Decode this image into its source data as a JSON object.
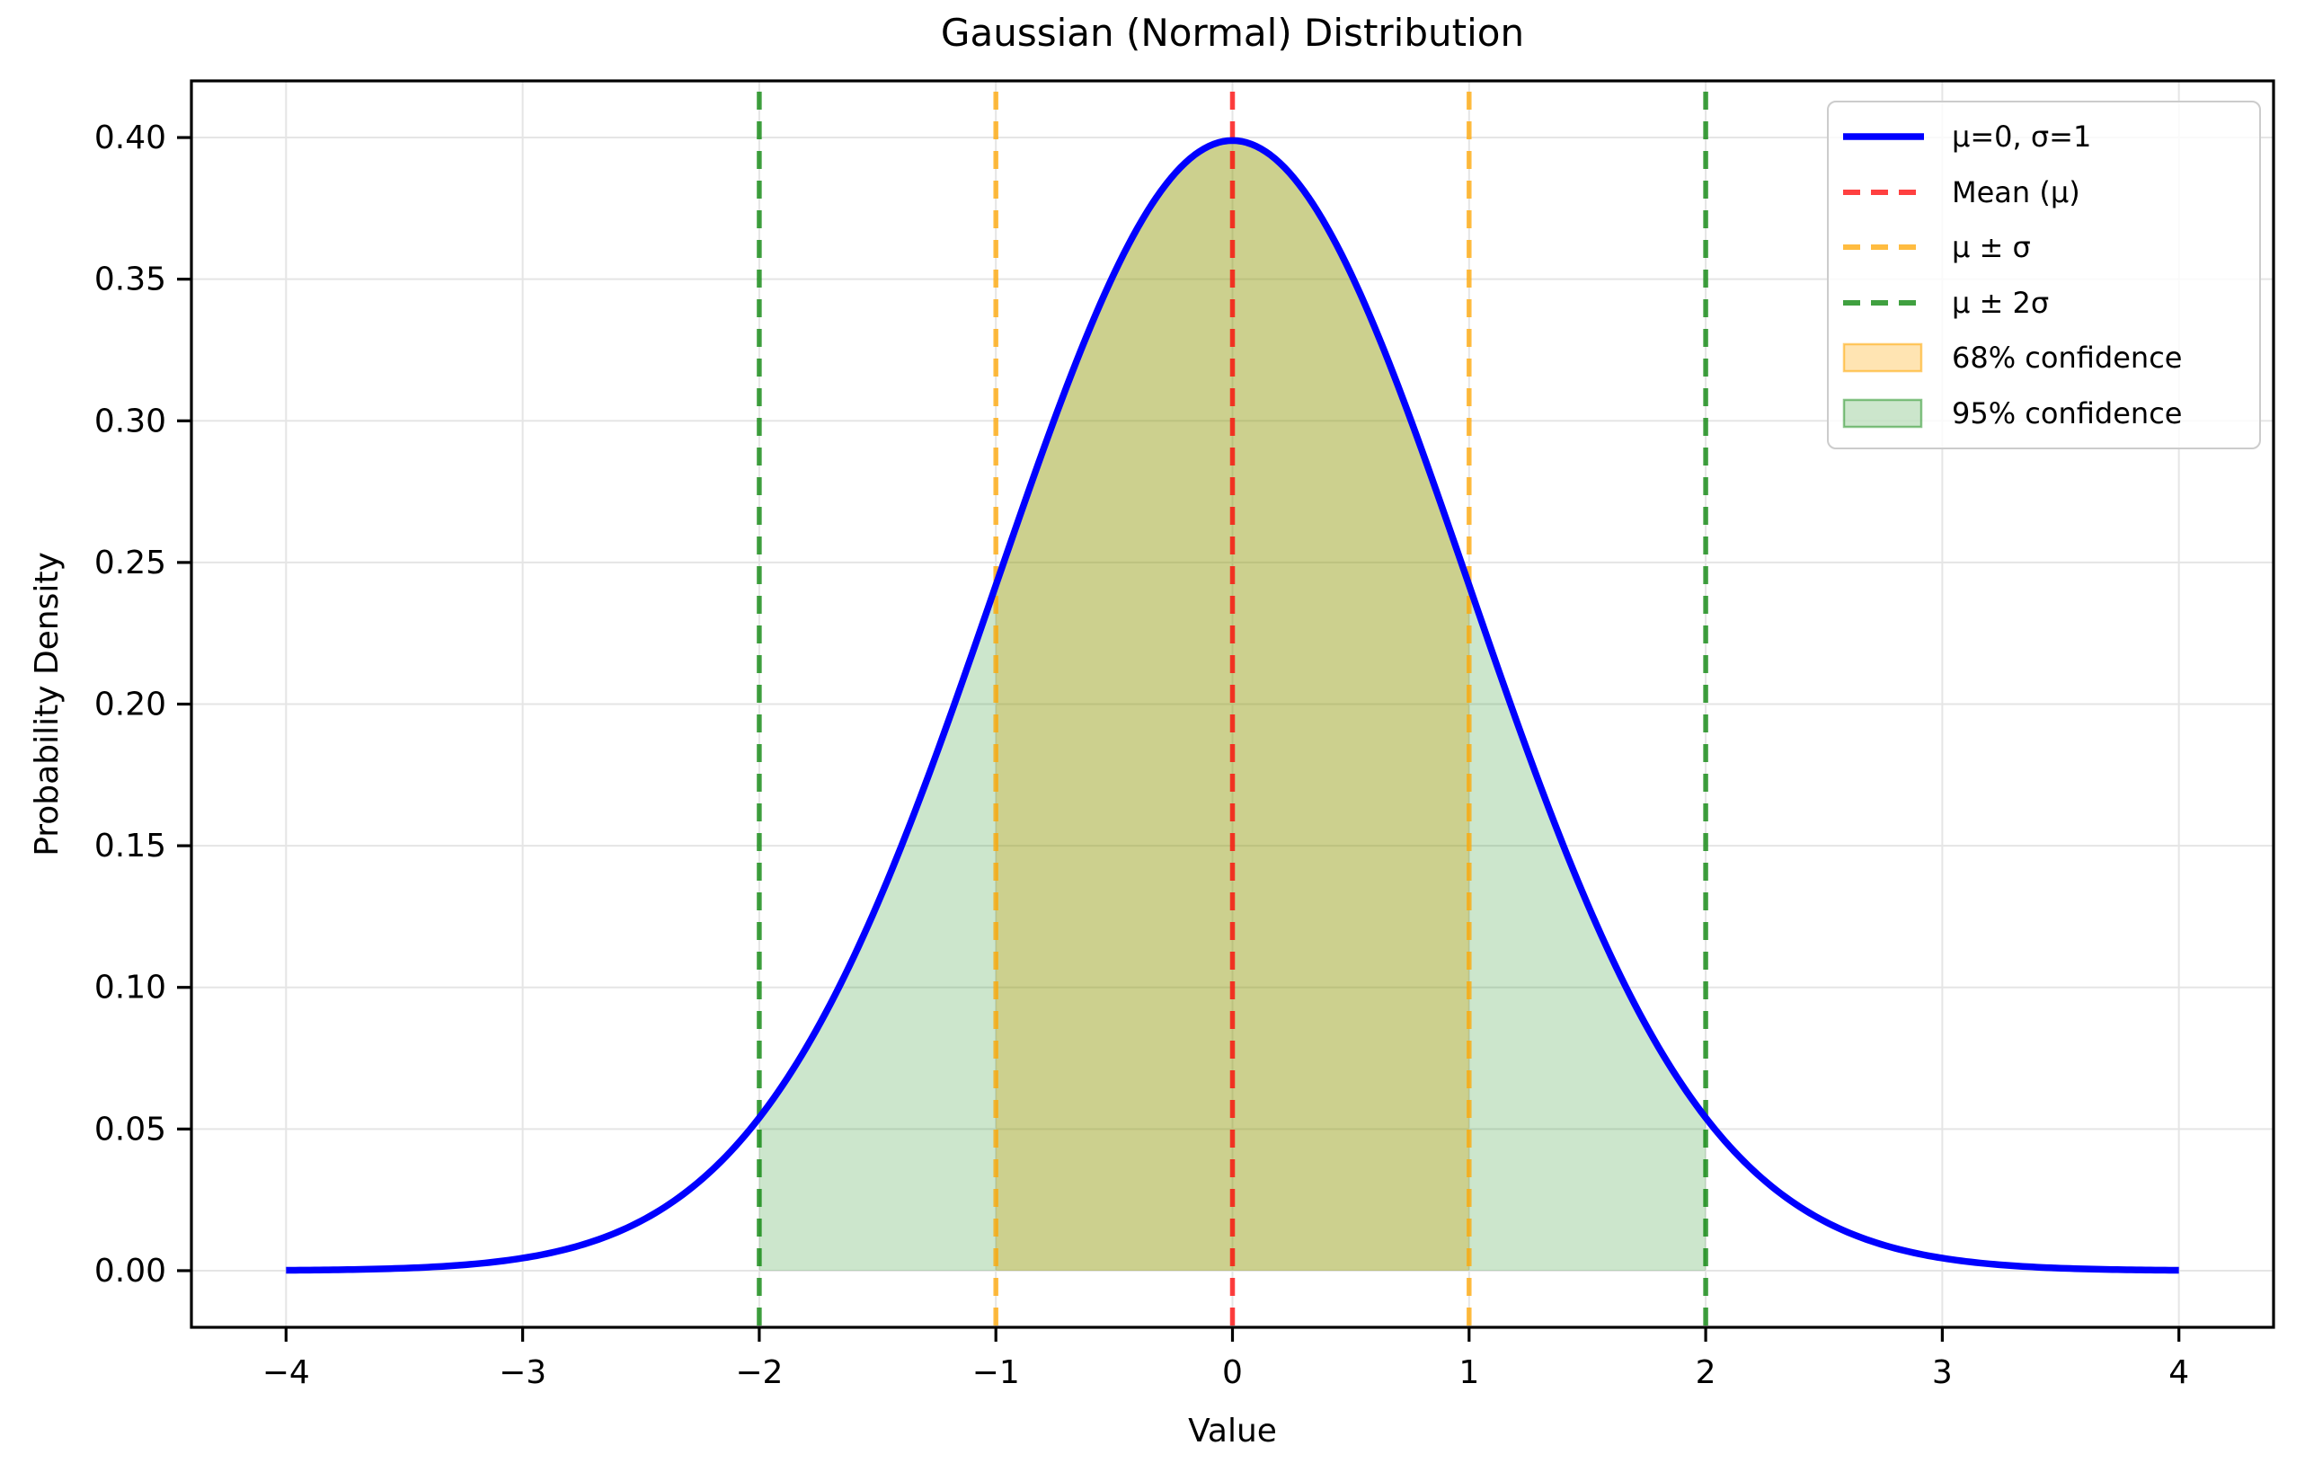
{
  "chart_data": {
    "type": "line",
    "title": "Gaussian (Normal) Distribution",
    "xlabel": "Value",
    "ylabel": "Probability Density",
    "xlim": [
      -4.4,
      4.4
    ],
    "ylim": [
      -0.02,
      0.42
    ],
    "grid": true,
    "legend_position": "upper right",
    "xticks": [
      -4,
      -3,
      -2,
      -1,
      0,
      1,
      2,
      3,
      4
    ],
    "xtick_labels": [
      "−4",
      "−3",
      "−2",
      "−1",
      "0",
      "1",
      "2",
      "3",
      "4"
    ],
    "yticks": [
      0.0,
      0.05,
      0.1,
      0.15,
      0.2,
      0.25,
      0.3,
      0.35,
      0.4
    ],
    "ytick_labels": [
      "0.00",
      "0.05",
      "0.10",
      "0.15",
      "0.20",
      "0.25",
      "0.30",
      "0.35",
      "0.40"
    ],
    "series": [
      {
        "name": "μ=0, σ=1",
        "curve": "normal-pdf",
        "mu": 0,
        "sigma": 1,
        "x_range": [
          -4,
          4
        ],
        "color": "#0000ff",
        "style": "solid",
        "sample_x": [
          -4,
          -3.5,
          -3,
          -2.5,
          -2,
          -1.5,
          -1,
          -0.5,
          0,
          0.5,
          1,
          1.5,
          2,
          2.5,
          3,
          3.5,
          4
        ],
        "sample_y": [
          0.0001,
          0.0009,
          0.0044,
          0.0175,
          0.054,
          0.1295,
          0.242,
          0.3521,
          0.3989,
          0.3521,
          0.242,
          0.1295,
          0.054,
          0.0175,
          0.0044,
          0.0009,
          0.0001
        ]
      }
    ],
    "vlines": [
      {
        "name": "Mean (μ)",
        "x": [
          0
        ],
        "color": "#ff0000",
        "style": "dashed",
        "alpha": 0.75
      },
      {
        "name": "μ ± σ",
        "x": [
          -1,
          1
        ],
        "color": "#ffa500",
        "style": "dashed",
        "alpha": 0.75
      },
      {
        "name": "μ ± 2σ",
        "x": [
          -2,
          2
        ],
        "color": "#008000",
        "style": "dashed",
        "alpha": 0.75
      }
    ],
    "fills": [
      {
        "name": "68% confidence",
        "x_range": [
          -1,
          1
        ],
        "color": "#ffa500",
        "alpha": 0.3
      },
      {
        "name": "95% confidence",
        "x_range": [
          -2,
          2
        ],
        "color": "#008000",
        "alpha": 0.2
      }
    ],
    "legend": [
      {
        "label": "μ=0, σ=1",
        "swatch": "line",
        "color": "#0000ff",
        "alpha": 1.0
      },
      {
        "label": "Mean (μ)",
        "swatch": "dashed-line",
        "color": "#ff0000",
        "alpha": 0.75
      },
      {
        "label": "μ ± σ",
        "swatch": "dashed-line",
        "color": "#ffa500",
        "alpha": 0.75
      },
      {
        "label": "μ ± 2σ",
        "swatch": "dashed-line",
        "color": "#008000",
        "alpha": 0.75
      },
      {
        "label": "68% confidence",
        "swatch": "patch",
        "color": "#ffa500",
        "alpha": 0.3
      },
      {
        "label": "95% confidence",
        "swatch": "patch",
        "color": "#008000",
        "alpha": 0.2
      }
    ],
    "colors": {
      "curve": "#0000ff",
      "grid": "#e5e5e5",
      "spine": "#000000",
      "text": "#000000",
      "legend_border": "#cccccc"
    }
  }
}
